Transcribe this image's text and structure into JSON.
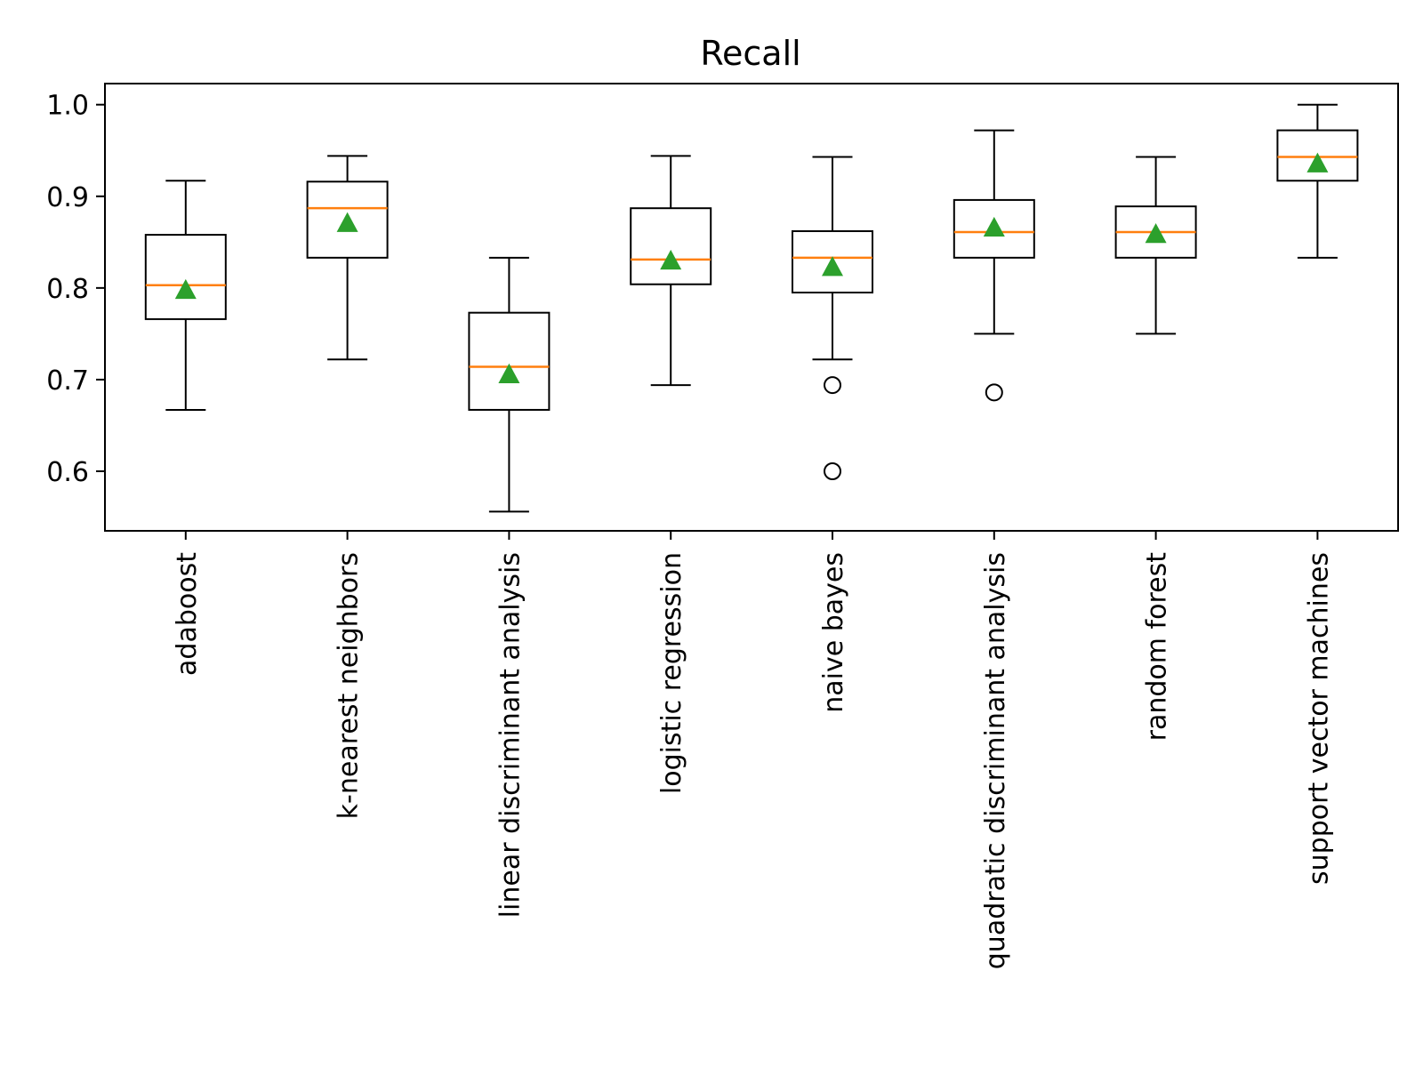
{
  "chart_data": {
    "type": "box",
    "title": "Recall",
    "xlabel": "",
    "ylabel": "",
    "ylim": [
      0.535,
      1.023
    ],
    "yticks": [
      0.6,
      0.7,
      0.8,
      0.9,
      1.0
    ],
    "ytick_labels": [
      "0.6",
      "0.7",
      "0.8",
      "0.9",
      "1.0"
    ],
    "grid": false,
    "legend": "none",
    "x_tick_rotation": "vertical",
    "colors": {
      "box": "#000000",
      "median": "#ff7f0e",
      "mean": "#2ca02c",
      "outlier": "#000000"
    },
    "categories": [
      "adaboost",
      "k-nearest neighbors",
      "linear discriminant analysis",
      "logistic regression",
      "naive bayes",
      "quadratic discriminant analysis",
      "random forest",
      "support vector machines"
    ],
    "boxes": [
      {
        "category": "adaboost",
        "whisker_low": 0.667,
        "q1": 0.766,
        "median": 0.803,
        "q3": 0.858,
        "whisker_high": 0.917,
        "mean": 0.798,
        "outliers": []
      },
      {
        "category": "k-nearest neighbors",
        "whisker_low": 0.722,
        "q1": 0.833,
        "median": 0.887,
        "q3": 0.916,
        "whisker_high": 0.944,
        "mean": 0.871,
        "outliers": []
      },
      {
        "category": "linear discriminant analysis",
        "whisker_low": 0.556,
        "q1": 0.667,
        "median": 0.714,
        "q3": 0.773,
        "whisker_high": 0.833,
        "mean": 0.706,
        "outliers": []
      },
      {
        "category": "logistic regression",
        "whisker_low": 0.694,
        "q1": 0.804,
        "median": 0.831,
        "q3": 0.887,
        "whisker_high": 0.944,
        "mean": 0.83,
        "outliers": []
      },
      {
        "category": "naive bayes",
        "whisker_low": 0.722,
        "q1": 0.795,
        "median": 0.833,
        "q3": 0.862,
        "whisker_high": 0.943,
        "mean": 0.823,
        "outliers": [
          0.694,
          0.6
        ]
      },
      {
        "category": "quadratic discriminant analysis",
        "whisker_low": 0.75,
        "q1": 0.833,
        "median": 0.861,
        "q3": 0.896,
        "whisker_high": 0.972,
        "mean": 0.866,
        "outliers": [
          0.686
        ]
      },
      {
        "category": "random forest",
        "whisker_low": 0.75,
        "q1": 0.833,
        "median": 0.861,
        "q3": 0.889,
        "whisker_high": 0.943,
        "mean": 0.859,
        "outliers": []
      },
      {
        "category": "support vector machines",
        "whisker_low": 0.833,
        "q1": 0.917,
        "median": 0.943,
        "q3": 0.972,
        "whisker_high": 1.0,
        "mean": 0.936,
        "outliers": []
      }
    ]
  }
}
